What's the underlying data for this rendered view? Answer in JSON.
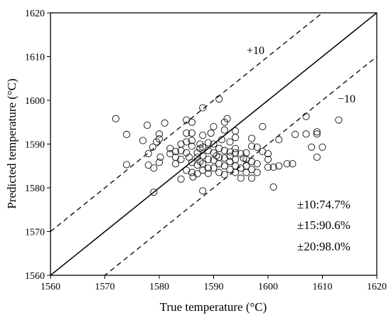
{
  "chart_data": {
    "type": "scatter",
    "xlabel": "True temperature (°C)",
    "ylabel": "Predicted temperature (°C)",
    "xlim": [
      1560,
      1620
    ],
    "ylim": [
      1560,
      1620
    ],
    "x_ticks": [
      "1560",
      "1570",
      "1580",
      "1590",
      "1600",
      "1610",
      "1620"
    ],
    "y_ticks": [
      "1560",
      "1570",
      "1580",
      "1590",
      "1600",
      "1610",
      "1620"
    ],
    "grid": false,
    "legend": "none",
    "reference_lines": [
      {
        "label": "",
        "style": "solid",
        "offset": 0
      },
      {
        "label": "+10",
        "style": "dashed",
        "offset": 10
      },
      {
        "label": "−10",
        "style": "dashed",
        "offset": -10
      }
    ],
    "stats": [
      "±10:74.7%",
      "±15:90.6%",
      "±20:98.0%"
    ],
    "points": [
      [
        1572,
        1595.8
      ],
      [
        1574,
        1592.2
      ],
      [
        1574,
        1585.3
      ],
      [
        1577,
        1590.8
      ],
      [
        1577.8,
        1594.3
      ],
      [
        1578,
        1587.8
      ],
      [
        1578,
        1585.2
      ],
      [
        1578.8,
        1589.3
      ],
      [
        1579,
        1584.5
      ],
      [
        1579,
        1579
      ],
      [
        1579.5,
        1590.5
      ],
      [
        1580,
        1592.3
      ],
      [
        1580,
        1591.2
      ],
      [
        1580,
        1585.8
      ],
      [
        1580.2,
        1587
      ],
      [
        1581,
        1594.8
      ],
      [
        1582,
        1587.8
      ],
      [
        1582,
        1589
      ],
      [
        1583,
        1585.5
      ],
      [
        1583,
        1587
      ],
      [
        1583,
        1588.3
      ],
      [
        1584,
        1590
      ],
      [
        1584,
        1588.5
      ],
      [
        1584,
        1586.5
      ],
      [
        1584,
        1582
      ],
      [
        1585,
        1595.5
      ],
      [
        1585,
        1592.5
      ],
      [
        1585,
        1590.5
      ],
      [
        1585,
        1588
      ],
      [
        1585,
        1584
      ],
      [
        1585.5,
        1587
      ],
      [
        1586,
        1595
      ],
      [
        1586,
        1592.5
      ],
      [
        1586,
        1590.8
      ],
      [
        1586,
        1589.5
      ],
      [
        1586,
        1585.8
      ],
      [
        1586,
        1583.5
      ],
      [
        1586.2,
        1582.5
      ],
      [
        1587,
        1588
      ],
      [
        1587,
        1587
      ],
      [
        1587,
        1585.2
      ],
      [
        1587,
        1583.2
      ],
      [
        1587.5,
        1590
      ],
      [
        1587.5,
        1589
      ],
      [
        1587.5,
        1586
      ],
      [
        1588,
        1598.3
      ],
      [
        1588,
        1592
      ],
      [
        1588,
        1589.3
      ],
      [
        1588,
        1587.3
      ],
      [
        1588,
        1585.5
      ],
      [
        1588,
        1584
      ],
      [
        1588,
        1579.3
      ],
      [
        1589,
        1590.3
      ],
      [
        1589,
        1588.5
      ],
      [
        1589,
        1586.5
      ],
      [
        1589,
        1584.5
      ],
      [
        1589,
        1583.3
      ],
      [
        1589.5,
        1592.5
      ],
      [
        1590,
        1594
      ],
      [
        1590,
        1590
      ],
      [
        1590,
        1588
      ],
      [
        1590,
        1586.3
      ],
      [
        1590,
        1584.5
      ],
      [
        1590.5,
        1587.3
      ],
      [
        1591,
        1600.3
      ],
      [
        1591,
        1589
      ],
      [
        1591,
        1587
      ],
      [
        1591,
        1585.5
      ],
      [
        1591,
        1583.5
      ],
      [
        1591.5,
        1591
      ],
      [
        1592,
        1595
      ],
      [
        1592,
        1593.2
      ],
      [
        1592,
        1588.5
      ],
      [
        1592,
        1586.8
      ],
      [
        1592,
        1585
      ],
      [
        1592,
        1583
      ],
      [
        1592.5,
        1595.8
      ],
      [
        1593,
        1590.5
      ],
      [
        1593,
        1588.2
      ],
      [
        1593,
        1587.2
      ],
      [
        1593,
        1586
      ],
      [
        1593,
        1584.2
      ],
      [
        1594,
        1593
      ],
      [
        1594,
        1591.5
      ],
      [
        1594,
        1589
      ],
      [
        1594,
        1588
      ],
      [
        1594,
        1586.5
      ],
      [
        1594,
        1585
      ],
      [
        1594,
        1583.5
      ],
      [
        1595,
        1587.8
      ],
      [
        1595,
        1584.5
      ],
      [
        1595,
        1582.2
      ],
      [
        1595.5,
        1586.8
      ],
      [
        1596,
        1588
      ],
      [
        1596,
        1586.5
      ],
      [
        1596,
        1585
      ],
      [
        1596,
        1583.5
      ],
      [
        1597,
        1591.3
      ],
      [
        1597,
        1589.5
      ],
      [
        1597,
        1586
      ],
      [
        1597,
        1584.2
      ],
      [
        1597,
        1582.2
      ],
      [
        1598,
        1589.3
      ],
      [
        1598,
        1585.5
      ],
      [
        1598,
        1583.5
      ],
      [
        1599,
        1594
      ],
      [
        1599,
        1588.3
      ],
      [
        1600,
        1587.8
      ],
      [
        1600,
        1586.5
      ],
      [
        1600,
        1584.7
      ],
      [
        1601,
        1584.7
      ],
      [
        1601,
        1580.2
      ],
      [
        1602,
        1585
      ],
      [
        1602,
        1591
      ],
      [
        1603.5,
        1585.5
      ],
      [
        1604.5,
        1585.5
      ],
      [
        1605,
        1592.2
      ],
      [
        1607,
        1596.3
      ],
      [
        1607,
        1592.3
      ],
      [
        1608,
        1589.3
      ],
      [
        1609,
        1592.8
      ],
      [
        1609,
        1592.3
      ],
      [
        1609,
        1587
      ],
      [
        1610,
        1589.3
      ],
      [
        1613,
        1595.5
      ]
    ]
  }
}
